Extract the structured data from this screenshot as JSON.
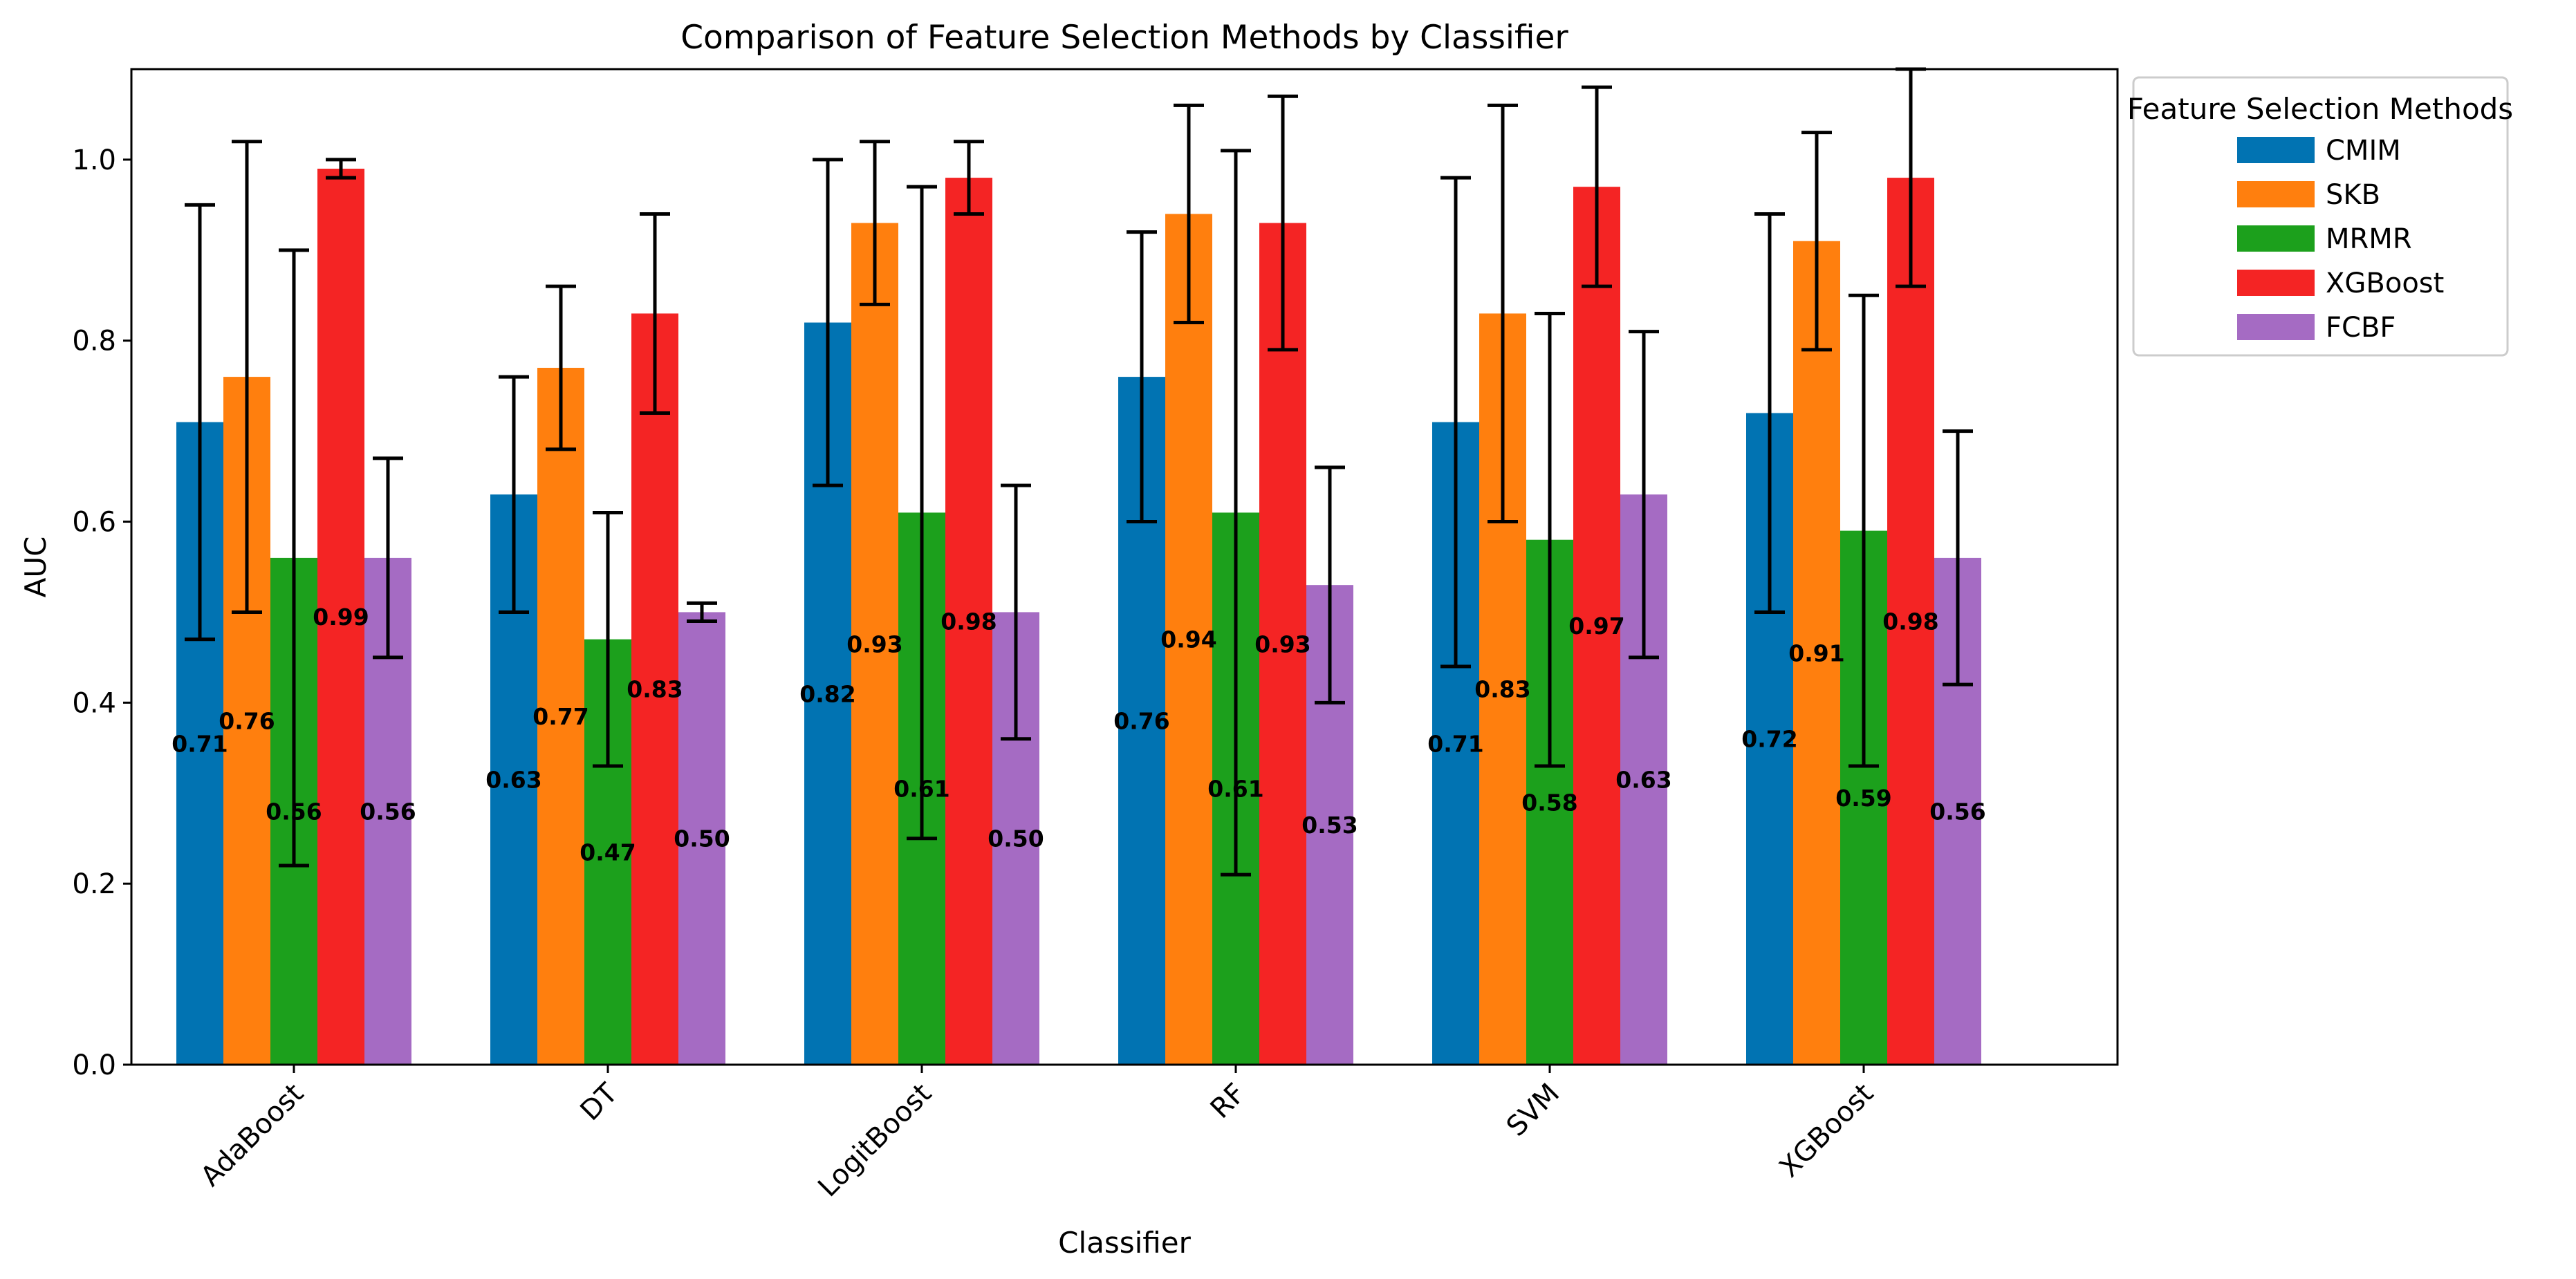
{
  "chart_data": {
    "type": "bar",
    "title": "Comparison of Feature Selection Methods by Classifier",
    "xlabel": "Classifier",
    "ylabel": "AUC",
    "ylim": [
      0,
      1.1
    ],
    "yticks": [
      0.0,
      0.2,
      0.4,
      0.6,
      0.8,
      1.0
    ],
    "ytick_labels": [
      "0.0",
      "0.2",
      "0.4",
      "0.6",
      "0.8",
      "1.0"
    ],
    "categories": [
      "AdaBoost",
      "DT",
      "LogitBoost",
      "RF",
      "SVM",
      "XGBoost"
    ],
    "grid": false,
    "legend": {
      "title": "Feature Selection Methods",
      "placement": "outside-top-right"
    },
    "error_bars": true,
    "series": [
      {
        "name": "CMIM",
        "color": "#0173b2",
        "values": [
          0.71,
          0.63,
          0.82,
          0.76,
          0.71,
          0.72
        ],
        "labels": [
          "0.71",
          "0.63",
          "0.82",
          "0.76",
          "0.71",
          "0.72"
        ],
        "err": [
          0.24,
          0.13,
          0.18,
          0.16,
          0.27,
          0.22
        ]
      },
      {
        "name": "SKB",
        "color": "#ff7f0e",
        "values": [
          0.76,
          0.77,
          0.93,
          0.94,
          0.83,
          0.91
        ],
        "labels": [
          "0.76",
          "0.77",
          "0.93",
          "0.94",
          "0.83",
          "0.91"
        ],
        "err": [
          0.26,
          0.09,
          0.09,
          0.12,
          0.23,
          0.12
        ]
      },
      {
        "name": "MRMR",
        "color": "#1ca01c",
        "values": [
          0.56,
          0.47,
          0.61,
          0.61,
          0.58,
          0.59
        ],
        "labels": [
          "0.56",
          "0.47",
          "0.61",
          "0.61",
          "0.58",
          "0.59"
        ],
        "err": [
          0.34,
          0.14,
          0.36,
          0.4,
          0.25,
          0.26
        ]
      },
      {
        "name": "XGBoost",
        "color": "#f42424",
        "values": [
          0.99,
          0.83,
          0.98,
          0.93,
          0.97,
          0.98
        ],
        "labels": [
          "0.99",
          "0.83",
          "0.98",
          "0.93",
          "0.97",
          "0.98"
        ],
        "err": [
          0.01,
          0.11,
          0.04,
          0.14,
          0.11,
          0.12
        ]
      },
      {
        "name": "FCBF",
        "color": "#a56bc3",
        "values": [
          0.56,
          0.5,
          0.5,
          0.53,
          0.63,
          0.56
        ],
        "labels": [
          "0.56",
          "0.50",
          "0.50",
          "0.53",
          "0.63",
          "0.56"
        ],
        "err": [
          0.11,
          0.01,
          0.14,
          0.13,
          0.18,
          0.14
        ]
      }
    ]
  }
}
